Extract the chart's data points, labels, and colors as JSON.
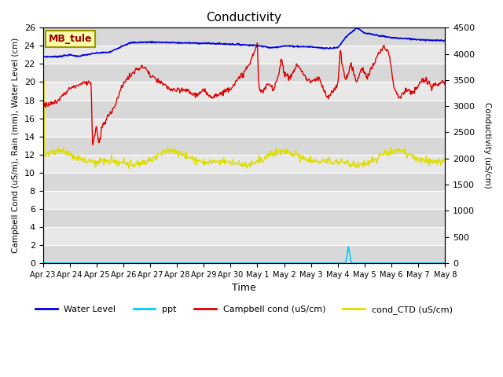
{
  "title": "Conductivity",
  "xlabel": "Time",
  "ylabel_left": "Campbell Cond (uS/m), Rain (mm), Water Level (cm)",
  "ylabel_right": "Conductivity (uS/cm)",
  "site_label": "MB_tule",
  "ylim_left": [
    0,
    26
  ],
  "ylim_right": [
    0,
    4500
  ],
  "yticks_left": [
    0,
    2,
    4,
    6,
    8,
    10,
    12,
    14,
    16,
    18,
    20,
    22,
    24,
    26
  ],
  "yticks_right": [
    0,
    500,
    1000,
    1500,
    2000,
    2500,
    3000,
    3500,
    4000,
    4500
  ],
  "xtick_labels": [
    "Apr 23",
    "Apr 24",
    "Apr 25",
    "Apr 26",
    "Apr 27",
    "Apr 28",
    "Apr 29",
    "Apr 30",
    "May 1",
    "May 2",
    "May 3",
    "May 4",
    "May 5",
    "May 6",
    "May 7",
    "May 8"
  ],
  "colors": {
    "water_level": "#0000dd",
    "ppt": "#00ccff",
    "campbell_cond": "#dd0000",
    "cond_ctd": "#dddd00",
    "plot_bg": "#e8e8e8",
    "grid_color": "#ffffff",
    "site_label_bg": "#ffffaa",
    "site_label_border": "#999900",
    "site_label_text": "#990000"
  },
  "legend_labels": [
    "Water Level",
    "ppt",
    "Campbell cond (uS/cm)",
    "cond_CTD (uS/cm)"
  ]
}
